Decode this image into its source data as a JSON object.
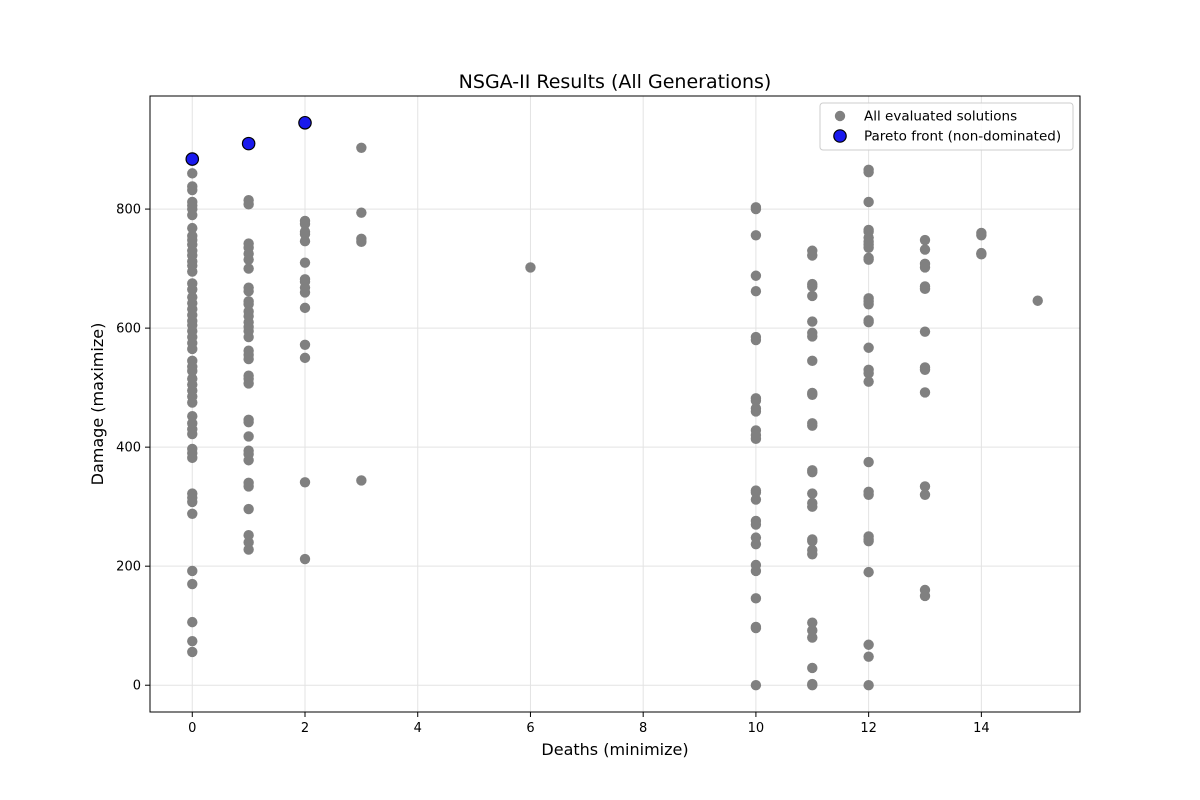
{
  "chart_data": {
    "type": "scatter",
    "title": "NSGA-II Results (All Generations)",
    "xlabel": "Deaths (minimize)",
    "ylabel": "Damage (maximize)",
    "xlim": [
      -0.75,
      15.75
    ],
    "ylim": [
      -45,
      990
    ],
    "xticks": [
      0,
      2,
      4,
      6,
      8,
      10,
      12,
      14
    ],
    "yticks": [
      0,
      200,
      400,
      600,
      800
    ],
    "grid": true,
    "legend_position": "top-right",
    "series": [
      {
        "name": "All evaluated solutions",
        "color": "#808080",
        "points": [
          [
            0,
            860
          ],
          [
            0,
            838
          ],
          [
            0,
            832
          ],
          [
            0,
            812
          ],
          [
            0,
            806
          ],
          [
            0,
            800
          ],
          [
            0,
            790
          ],
          [
            0,
            768
          ],
          [
            0,
            755
          ],
          [
            0,
            748
          ],
          [
            0,
            740
          ],
          [
            0,
            730
          ],
          [
            0,
            722
          ],
          [
            0,
            712
          ],
          [
            0,
            705
          ],
          [
            0,
            695
          ],
          [
            0,
            675
          ],
          [
            0,
            665
          ],
          [
            0,
            652
          ],
          [
            0,
            642
          ],
          [
            0,
            632
          ],
          [
            0,
            622
          ],
          [
            0,
            612
          ],
          [
            0,
            605
          ],
          [
            0,
            595
          ],
          [
            0,
            585
          ],
          [
            0,
            575
          ],
          [
            0,
            565
          ],
          [
            0,
            545
          ],
          [
            0,
            535
          ],
          [
            0,
            528
          ],
          [
            0,
            515
          ],
          [
            0,
            505
          ],
          [
            0,
            495
          ],
          [
            0,
            485
          ],
          [
            0,
            475
          ],
          [
            0,
            452
          ],
          [
            0,
            440
          ],
          [
            0,
            430
          ],
          [
            0,
            422
          ],
          [
            0,
            397
          ],
          [
            0,
            390
          ],
          [
            0,
            382
          ],
          [
            0,
            322
          ],
          [
            0,
            315
          ],
          [
            0,
            308
          ],
          [
            0,
            288
          ],
          [
            0,
            192
          ],
          [
            0,
            170
          ],
          [
            0,
            106
          ],
          [
            0,
            74
          ],
          [
            0,
            56
          ],
          [
            1,
            815
          ],
          [
            1,
            808
          ],
          [
            1,
            742
          ],
          [
            1,
            735
          ],
          [
            1,
            725
          ],
          [
            1,
            715
          ],
          [
            1,
            700
          ],
          [
            1,
            668
          ],
          [
            1,
            662
          ],
          [
            1,
            645
          ],
          [
            1,
            640
          ],
          [
            1,
            628
          ],
          [
            1,
            620
          ],
          [
            1,
            610
          ],
          [
            1,
            602
          ],
          [
            1,
            595
          ],
          [
            1,
            585
          ],
          [
            1,
            562
          ],
          [
            1,
            555
          ],
          [
            1,
            548
          ],
          [
            1,
            520
          ],
          [
            1,
            515
          ],
          [
            1,
            507
          ],
          [
            1,
            446
          ],
          [
            1,
            442
          ],
          [
            1,
            418
          ],
          [
            1,
            394
          ],
          [
            1,
            388
          ],
          [
            1,
            378
          ],
          [
            1,
            340
          ],
          [
            1,
            334
          ],
          [
            1,
            296
          ],
          [
            1,
            252
          ],
          [
            1,
            240
          ],
          [
            1,
            228
          ],
          [
            2,
            780
          ],
          [
            2,
            775
          ],
          [
            2,
            762
          ],
          [
            2,
            758
          ],
          [
            2,
            746
          ],
          [
            2,
            710
          ],
          [
            2,
            682
          ],
          [
            2,
            678
          ],
          [
            2,
            668
          ],
          [
            2,
            660
          ],
          [
            2,
            634
          ],
          [
            2,
            572
          ],
          [
            2,
            550
          ],
          [
            2,
            341
          ],
          [
            2,
            212
          ],
          [
            3,
            903
          ],
          [
            3,
            794
          ],
          [
            3,
            750
          ],
          [
            3,
            745
          ],
          [
            3,
            344
          ],
          [
            6,
            702
          ],
          [
            10,
            803
          ],
          [
            10,
            800
          ],
          [
            10,
            756
          ],
          [
            10,
            688
          ],
          [
            10,
            662
          ],
          [
            10,
            585
          ],
          [
            10,
            580
          ],
          [
            10,
            482
          ],
          [
            10,
            478
          ],
          [
            10,
            465
          ],
          [
            10,
            460
          ],
          [
            10,
            428
          ],
          [
            10,
            420
          ],
          [
            10,
            414
          ],
          [
            10,
            327
          ],
          [
            10,
            324
          ],
          [
            10,
            312
          ],
          [
            10,
            276
          ],
          [
            10,
            270
          ],
          [
            10,
            248
          ],
          [
            10,
            237
          ],
          [
            10,
            202
          ],
          [
            10,
            192
          ],
          [
            10,
            146
          ],
          [
            10,
            98
          ],
          [
            10,
            96
          ],
          [
            10,
            0
          ],
          [
            11,
            730
          ],
          [
            11,
            722
          ],
          [
            11,
            674
          ],
          [
            11,
            670
          ],
          [
            11,
            654
          ],
          [
            11,
            611
          ],
          [
            11,
            592
          ],
          [
            11,
            586
          ],
          [
            11,
            545
          ],
          [
            11,
            491
          ],
          [
            11,
            488
          ],
          [
            11,
            440
          ],
          [
            11,
            436
          ],
          [
            11,
            361
          ],
          [
            11,
            358
          ],
          [
            11,
            322
          ],
          [
            11,
            306
          ],
          [
            11,
            300
          ],
          [
            11,
            245
          ],
          [
            11,
            242
          ],
          [
            11,
            227
          ],
          [
            11,
            220
          ],
          [
            11,
            105
          ],
          [
            11,
            92
          ],
          [
            11,
            80
          ],
          [
            11,
            29
          ],
          [
            11,
            2
          ],
          [
            11,
            0
          ],
          [
            12,
            866
          ],
          [
            12,
            862
          ],
          [
            12,
            812
          ],
          [
            12,
            765
          ],
          [
            12,
            762
          ],
          [
            12,
            752
          ],
          [
            12,
            745
          ],
          [
            12,
            740
          ],
          [
            12,
            735
          ],
          [
            12,
            718
          ],
          [
            12,
            715
          ],
          [
            12,
            650
          ],
          [
            12,
            645
          ],
          [
            12,
            640
          ],
          [
            12,
            613
          ],
          [
            12,
            610
          ],
          [
            12,
            567
          ],
          [
            12,
            530
          ],
          [
            12,
            524
          ],
          [
            12,
            510
          ],
          [
            12,
            375
          ],
          [
            12,
            325
          ],
          [
            12,
            320
          ],
          [
            12,
            250
          ],
          [
            12,
            245
          ],
          [
            12,
            242
          ],
          [
            12,
            190
          ],
          [
            12,
            68
          ],
          [
            12,
            48
          ],
          [
            12,
            0
          ],
          [
            13,
            748
          ],
          [
            13,
            732
          ],
          [
            13,
            708
          ],
          [
            13,
            702
          ],
          [
            13,
            670
          ],
          [
            13,
            666
          ],
          [
            13,
            594
          ],
          [
            13,
            534
          ],
          [
            13,
            530
          ],
          [
            13,
            492
          ],
          [
            13,
            334
          ],
          [
            13,
            320
          ],
          [
            13,
            160
          ],
          [
            13,
            150
          ],
          [
            14,
            760
          ],
          [
            14,
            756
          ],
          [
            14,
            726
          ],
          [
            14,
            724
          ],
          [
            15,
            646
          ]
        ]
      },
      {
        "name": "Pareto front (non-dominated)",
        "color": "#1a1aee",
        "points": [
          [
            0,
            884
          ],
          [
            1,
            910
          ],
          [
            2,
            945
          ]
        ]
      }
    ]
  }
}
